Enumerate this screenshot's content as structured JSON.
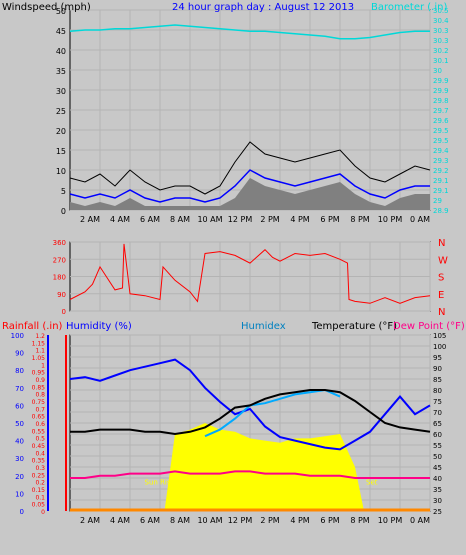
{
  "chart_data": [
    {
      "type": "line",
      "panel": "wind-barometer",
      "title": "24 hour graph day : August 12 2013",
      "left_axis_label": "Windspeed (mph)",
      "right_axis_label": "Barometer (.in)",
      "x_ticks": [
        "2 AM",
        "4 AM",
        "6 AM",
        "8 AM",
        "10 AM",
        "12 PM",
        "2 PM",
        "4 PM",
        "6 PM",
        "8 PM",
        "10 PM",
        "0 AM"
      ],
      "y_left_ticks": [
        "0",
        "5",
        "10",
        "15",
        "20",
        "25",
        "30",
        "35",
        "40",
        "45",
        "50"
      ],
      "y_left_lim": [
        0,
        50
      ],
      "y_right_ticks": [
        "28.9",
        "29",
        "29.1",
        "29.1",
        "29.2",
        "29.3",
        "29.4",
        "29.5",
        "29.5",
        "29.6",
        "29.7",
        "29.8",
        "29.9",
        "29.9",
        "30",
        "30.1",
        "30.2",
        "30.3",
        "30.3",
        "30.4",
        "30.5"
      ],
      "x_hours": [
        0,
        1,
        2,
        3,
        4,
        5,
        6,
        7,
        8,
        9,
        10,
        11,
        12,
        13,
        14,
        15,
        16,
        17,
        18,
        19,
        20,
        21,
        22,
        23,
        24
      ],
      "series": [
        {
          "role": "barometer",
          "color": "#00d8d8",
          "values": [
            30.33,
            30.34,
            30.34,
            30.35,
            30.35,
            30.36,
            30.37,
            30.38,
            30.37,
            30.36,
            30.35,
            30.34,
            30.33,
            30.33,
            30.32,
            30.31,
            30.3,
            30.29,
            30.27,
            30.27,
            30.28,
            30.3,
            30.32,
            30.33,
            30.33
          ]
        },
        {
          "role": "wind-average",
          "color": "#0000ff",
          "values": [
            4,
            3,
            4,
            3,
            5,
            3,
            2,
            3,
            3,
            2,
            3,
            6,
            10,
            8,
            7,
            6,
            7,
            8,
            9,
            6,
            4,
            3,
            5,
            6,
            6
          ]
        },
        {
          "role": "wind-gust",
          "color": "#000000",
          "values": [
            8,
            7,
            9,
            6,
            10,
            7,
            5,
            6,
            6,
            4,
            6,
            12,
            17,
            14,
            13,
            12,
            13,
            14,
            15,
            11,
            8,
            7,
            9,
            11,
            10
          ]
        },
        {
          "role": "wind-range-fill",
          "color": "#808080",
          "values": [
            2,
            1,
            2,
            1,
            3,
            1,
            1,
            1,
            1,
            1,
            1,
            3,
            8,
            6,
            5,
            4,
            5,
            6,
            7,
            4,
            2,
            1,
            3,
            4,
            4
          ]
        }
      ]
    },
    {
      "type": "line",
      "panel": "wind-direction",
      "y_left_ticks": [
        "0",
        "90",
        "180",
        "270",
        "360"
      ],
      "y_left_lim": [
        0,
        360
      ],
      "y_right_ticks": [
        "N",
        "E",
        "S",
        "W",
        "N"
      ],
      "series": [
        {
          "role": "wind-direction",
          "color": "#ff0000",
          "x": [
            0,
            1,
            1.5,
            2,
            2.5,
            3,
            3.5,
            3.6,
            4,
            5,
            6,
            6.2,
            7,
            8,
            8.5,
            9,
            10,
            11,
            12,
            13,
            13.5,
            14,
            15,
            16,
            17,
            18,
            18.5,
            18.6,
            19,
            20,
            21,
            22,
            23,
            24
          ],
          "values": [
            60,
            100,
            140,
            230,
            170,
            110,
            120,
            350,
            90,
            80,
            60,
            230,
            160,
            100,
            50,
            300,
            310,
            290,
            250,
            320,
            280,
            260,
            300,
            290,
            300,
            270,
            250,
            60,
            50,
            40,
            70,
            40,
            70,
            80
          ]
        }
      ]
    },
    {
      "type": "line",
      "panel": "temp-humidity-rain",
      "left_axis_label_1": "Rainfall (.in)",
      "left_axis_label_2": "Humidity (%)",
      "center_label": "Humidex",
      "right_axis_label": "Temperature (°F)",
      "right_axis_label_2": "Dew Point (°F)",
      "y_rain_ticks": [
        "0",
        "0.05",
        "0.1",
        "0.15",
        "0.2",
        "0.25",
        "0.3",
        "0.35",
        "0.4",
        "0.45",
        "0.5",
        "0.55",
        "0.6",
        "0.65",
        "0.7",
        "0.75",
        "0.8",
        "0.85",
        "0.9",
        "0.95",
        "1",
        "1.05",
        "1.1",
        "1.15",
        "1.2"
      ],
      "y_humidity_ticks": [
        "0",
        "10",
        "20",
        "30",
        "40",
        "50",
        "60",
        "70",
        "80",
        "90",
        "100"
      ],
      "y_temp_ticks": [
        "25",
        "30",
        "35",
        "40",
        "45",
        "50",
        "55",
        "60",
        "65",
        "70",
        "75",
        "80",
        "85",
        "90",
        "95",
        "100",
        "105"
      ],
      "y_temp_lim": [
        25,
        105
      ],
      "sun_labels": [
        "Sun Rise",
        "Set"
      ],
      "sunrise_hour": 6.3,
      "sunset_hour": 19.6,
      "x_hours": [
        0,
        1,
        2,
        3,
        4,
        5,
        6,
        7,
        8,
        9,
        10,
        11,
        12,
        13,
        14,
        15,
        16,
        17,
        18,
        19,
        20,
        21,
        22,
        23,
        24
      ],
      "series": [
        {
          "role": "humidity",
          "color": "#0000ff",
          "values": [
            75,
            76,
            74,
            77,
            80,
            82,
            84,
            86,
            80,
            70,
            62,
            55,
            58,
            48,
            42,
            40,
            38,
            36,
            35,
            40,
            45,
            55,
            65,
            55,
            60
          ]
        },
        {
          "role": "humidex",
          "color": "#00aaff",
          "values": [
            null,
            null,
            null,
            null,
            null,
            null,
            null,
            null,
            null,
            59,
            62,
            67,
            73,
            74,
            76,
            78,
            79,
            80,
            77,
            null,
            null,
            null,
            null,
            null,
            null
          ]
        },
        {
          "role": "temperature",
          "color": "#000000",
          "values": [
            61,
            61,
            62,
            62,
            62,
            61,
            61,
            60,
            61,
            63,
            67,
            72,
            73,
            76,
            78,
            79,
            80,
            80,
            79,
            75,
            70,
            65,
            63,
            62,
            61
          ]
        },
        {
          "role": "dew-point",
          "color": "#ff0088",
          "values": [
            40,
            40,
            41,
            41,
            42,
            42,
            42,
            43,
            42,
            42,
            42,
            43,
            43,
            42,
            42,
            42,
            41,
            41,
            41,
            40,
            40,
            40,
            40,
            40,
            40
          ]
        },
        {
          "role": "solar",
          "color": "#ffff00",
          "values": [
            0,
            0,
            0,
            0,
            0,
            0,
            0,
            60,
            62,
            65,
            62,
            61,
            58,
            57,
            56,
            58,
            58,
            59,
            60,
            45,
            0,
            0,
            0,
            0,
            0
          ]
        },
        {
          "role": "rainfall",
          "color": "#ff8800",
          "values": [
            0,
            0,
            0,
            0,
            0,
            0,
            0,
            0,
            0,
            0,
            0,
            0,
            0,
            0,
            0,
            0,
            0,
            0,
            0,
            0,
            0,
            0,
            0,
            0,
            0
          ]
        }
      ]
    }
  ]
}
